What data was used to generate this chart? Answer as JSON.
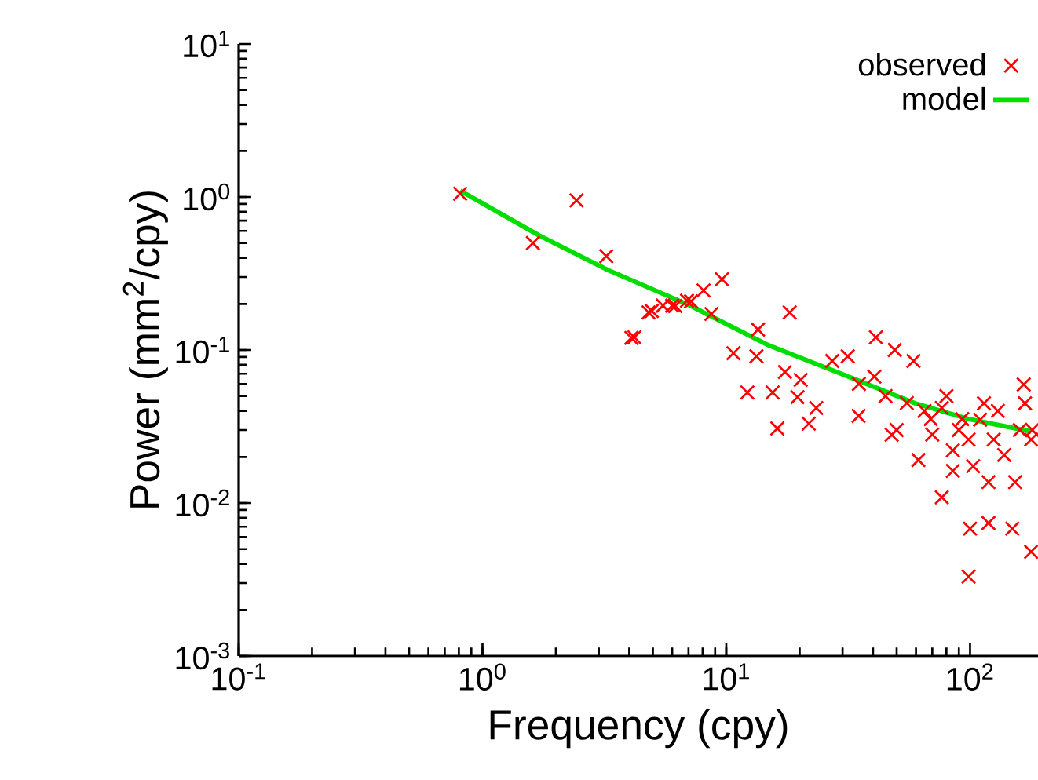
{
  "chart_data": {
    "type": "scatter",
    "xlabel": "Frequency (cpy)",
    "ylabel": "Power (mm$^{2}$/cpy)",
    "log": "xy",
    "xlim": [
      0.1,
      190
    ],
    "ylim": [
      0.001,
      10
    ],
    "xticks": [
      {
        "value": 0.1,
        "label": "10$^{-1}$"
      },
      {
        "value": 1,
        "label": "10$^{0}$"
      },
      {
        "value": 10,
        "label": "10$^{1}$"
      },
      {
        "value": 100,
        "label": "10$^{2}$"
      }
    ],
    "yticks": [
      {
        "value": 0.001,
        "label": "10$^{-3}$"
      },
      {
        "value": 0.01,
        "label": "10$^{-2}$"
      },
      {
        "value": 0.1,
        "label": "10$^{-1}$"
      },
      {
        "value": 1,
        "label": "10$^{0}$"
      },
      {
        "value": 10,
        "label": "10$^{1}$"
      }
    ],
    "legend": "top right",
    "grid": false,
    "series": [
      {
        "name": "observed",
        "marker": "cross",
        "color": "#ff0000",
        "x": [
          0.81,
          1.61,
          2.43,
          3.22,
          4.08,
          4.2,
          4.8,
          4.95,
          5.5,
          6.0,
          6.18,
          6.9,
          7.17,
          8.07,
          8.69,
          9.6,
          10.7,
          12.2,
          13.3,
          13.5,
          15.5,
          16.2,
          17.4,
          18.2,
          19.6,
          20.2,
          21.8,
          23.4,
          27.2,
          31.5,
          34.9,
          35,
          40.5,
          41.1,
          45,
          47.7,
          49.1,
          50,
          55,
          58.6,
          61.4,
          65,
          69,
          70,
          76.6,
          76.6,
          80,
          85,
          85,
          90,
          92.9,
          98.6,
          98.6,
          100,
          103,
          110,
          114,
          119,
          119,
          125,
          130,
          138,
          149,
          153,
          160,
          166,
          168,
          178,
          178,
          180
        ],
        "values": [
          1.05,
          0.5,
          0.95,
          0.41,
          0.12,
          0.121,
          0.176,
          0.18,
          0.195,
          0.195,
          0.194,
          0.21,
          0.208,
          0.245,
          0.172,
          0.29,
          0.0953,
          0.0528,
          0.091,
          0.136,
          0.0528,
          0.0307,
          0.0718,
          0.176,
          0.0492,
          0.0638,
          0.033,
          0.0418,
          0.0848,
          0.091,
          0.0371,
          0.06,
          0.067,
          0.121,
          0.05,
          0.0279,
          0.1,
          0.03,
          0.045,
          0.0848,
          0.0191,
          0.04,
          0.0354,
          0.028,
          0.0109,
          0.0418,
          0.05,
          0.0162,
          0.0221,
          0.03,
          0.0354,
          0.0033,
          0.026,
          0.0068,
          0.0174,
          0.035,
          0.0448,
          0.0074,
          0.0137,
          0.026,
          0.04,
          0.0206,
          0.0068,
          0.0137,
          0.03,
          0.0595,
          0.0448,
          0.0048,
          0.026,
          0.03
        ]
      },
      {
        "name": "model",
        "type": "line",
        "marker": "none",
        "line_style": "solid",
        "color": "#00dd00",
        "x": [
          0.81,
          1.71,
          3.27,
          7.17,
          8.3,
          15.0,
          28.4,
          59.6,
          98.6,
          178
        ],
        "values": [
          1.1,
          0.56,
          0.333,
          0.194,
          0.172,
          0.107,
          0.0718,
          0.0448,
          0.0354,
          0.0293
        ]
      }
    ]
  }
}
